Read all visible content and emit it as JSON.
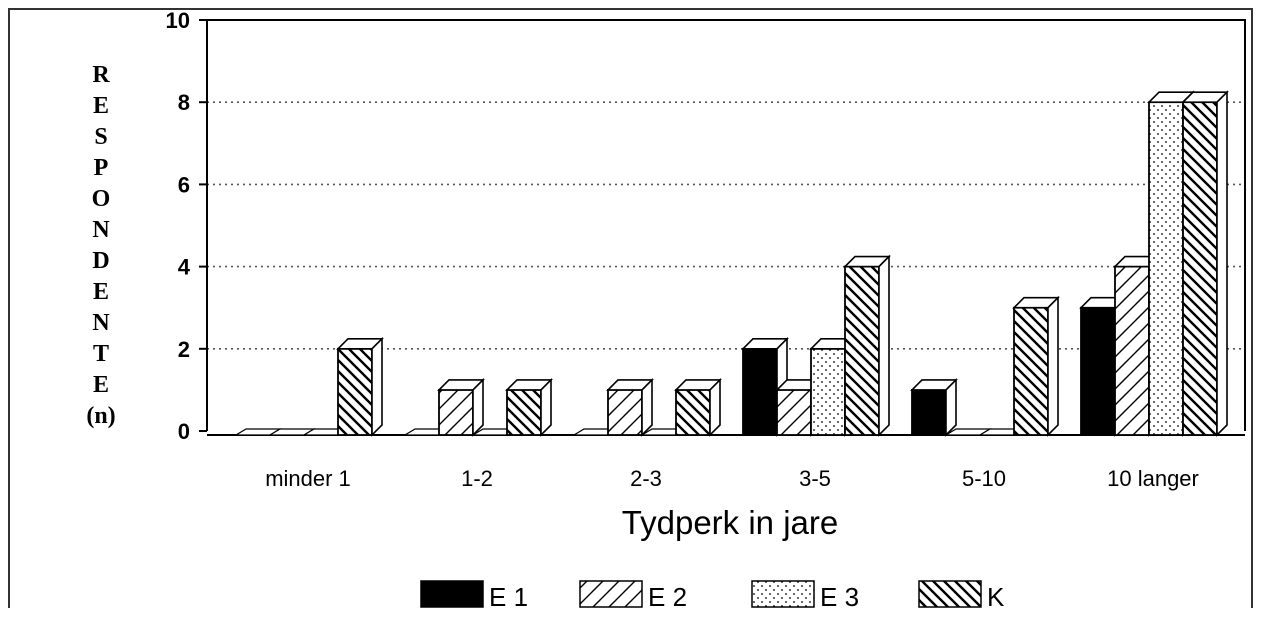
{
  "chart_data": {
    "type": "bar",
    "categories": [
      "minder 1",
      "1-2",
      "2-3",
      "3-5",
      "5-10",
      "10 langer"
    ],
    "series": [
      {
        "name": "E 1",
        "pattern": "solid",
        "values": [
          0,
          0,
          0,
          2,
          1,
          3
        ]
      },
      {
        "name": "E 2",
        "pattern": "diagonal-up",
        "values": [
          0,
          1,
          1,
          1,
          0,
          4
        ]
      },
      {
        "name": "E 3",
        "pattern": "dots",
        "values": [
          0,
          0,
          0,
          2,
          0,
          8
        ]
      },
      {
        "name": "K",
        "pattern": "diagonal-down",
        "values": [
          2,
          1,
          1,
          4,
          3,
          8
        ]
      }
    ],
    "xlabel": "Tydperk in jare",
    "ylabel_letters": [
      "R",
      "E",
      "S",
      "P",
      "O",
      "N",
      "D",
      "E",
      "N",
      "T",
      "E",
      "(n)"
    ],
    "yticks": [
      0,
      2,
      4,
      6,
      8,
      10
    ],
    "ylim": [
      0,
      10
    ],
    "grid": "dotted horizontal",
    "legend_position": "bottom",
    "style": "3d-bars"
  },
  "colors": {
    "ink": "#000000",
    "fill": "#ffffff",
    "grid": "#555555"
  }
}
